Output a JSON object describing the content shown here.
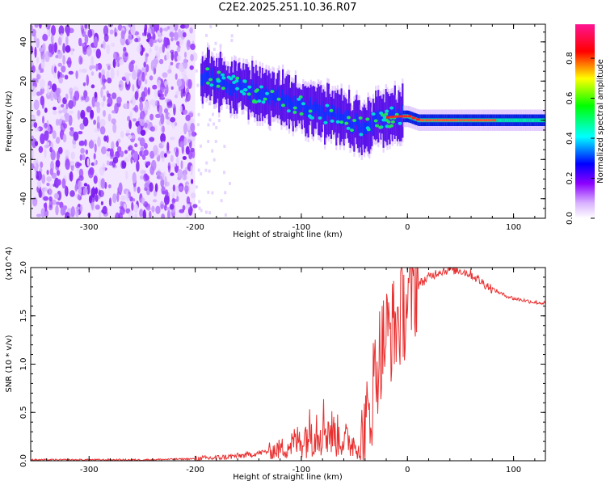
{
  "title": "C2E2.2025.251.10.36.R07",
  "chart_data": [
    {
      "type": "heatmap",
      "title": "C2E2.2025.251.10.36.R07",
      "xlabel": "Height of straight line (km)",
      "ylabel": "Frequency (Hz)",
      "xlim": [
        -355,
        130
      ],
      "ylim": [
        -50,
        49
      ],
      "xticks": [
        -300,
        -200,
        -100,
        0,
        100
      ],
      "xtick_labels": [
        "-300",
        "-200",
        "-100",
        "0",
        "100"
      ],
      "yticks": [
        -40,
        -20,
        0,
        20,
        40
      ],
      "ytick_labels": [
        "-40",
        "-20",
        "0",
        "20",
        "40"
      ],
      "colorbar": {
        "label": "Normalized spectral amplitude",
        "range": [
          0,
          0.97
        ],
        "ticks": [
          0.0,
          0.2,
          0.4,
          0.6,
          0.8
        ],
        "tick_labels": [
          "0.0",
          "0.2",
          "0.4",
          "0.6",
          "0.8"
        ],
        "colors": [
          "#ffffff",
          "#a020f0",
          "#0000ff",
          "#00ffff",
          "#00ff00",
          "#ffff00",
          "#ff0000",
          "#ff1493"
        ]
      },
      "regions": [
        {
          "name": "noise",
          "x_range": [
            -355,
            -200
          ],
          "freq_range": [
            -50,
            49
          ],
          "amplitude": 0.15
        },
        {
          "name": "drifting-signal",
          "points": [
            [
              -195,
              23
            ],
            [
              -150,
              15
            ],
            [
              -100,
              8
            ],
            [
              -50,
              -2
            ],
            [
              -40,
              -5
            ],
            [
              -30,
              1
            ],
            [
              -10,
              2
            ],
            [
              0,
              2
            ],
            [
              10,
              0
            ],
            [
              130,
              0
            ]
          ],
          "amplitude_peak": 0.95
        }
      ]
    },
    {
      "type": "line",
      "xlabel": "Height of straight line (km)",
      "ylabel": "SNR (10 * v/v)",
      "yscale_label": "(x10^4)",
      "xlim": [
        -355,
        130
      ],
      "ylim": [
        0,
        2.0
      ],
      "xticks": [
        -300,
        -200,
        -100,
        0,
        100
      ],
      "xtick_labels": [
        "-300",
        "-200",
        "-100",
        "0",
        "100"
      ],
      "yticks": [
        0,
        0.5,
        1.0,
        1.5,
        2.0
      ],
      "ytick_labels": [
        "0.0",
        "0.5",
        "1.0",
        "1.5",
        "2.0"
      ],
      "series": [
        {
          "name": "SNR",
          "color": "#e83030",
          "x": [
            -355,
            -300,
            -250,
            -200,
            -180,
            -150,
            -120,
            -100,
            -90,
            -80,
            -70,
            -60,
            -50,
            -45,
            -40,
            -35,
            -30,
            -25,
            -20,
            -15,
            -10,
            -5,
            0,
            5,
            10,
            20,
            30,
            40,
            50,
            60,
            70,
            80,
            90,
            100,
            110,
            120,
            130
          ],
          "values": [
            0.01,
            0.01,
            0.01,
            0.02,
            0.03,
            0.06,
            0.12,
            0.22,
            0.32,
            0.38,
            0.28,
            0.22,
            0.18,
            0.15,
            0.22,
            0.55,
            0.95,
            1.15,
            1.3,
            1.35,
            1.42,
            1.52,
            1.65,
            1.75,
            1.82,
            1.9,
            1.96,
            1.98,
            1.97,
            1.93,
            1.85,
            1.78,
            1.72,
            1.68,
            1.66,
            1.64,
            1.63
          ]
        }
      ]
    }
  ]
}
